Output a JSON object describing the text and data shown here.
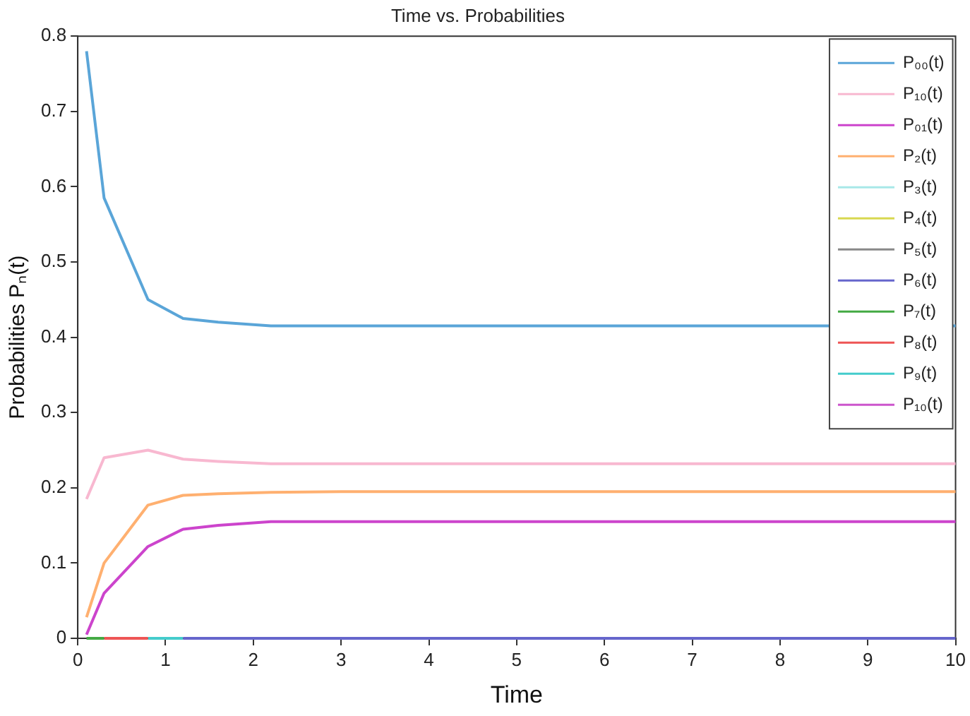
{
  "chart_data": {
    "type": "line",
    "title": "Time vs. Probabilities",
    "xlabel": "Time",
    "ylabel": "Probabilities Pₙ(t)",
    "x": [
      0.1,
      0.3,
      0.8,
      1.2,
      1.6,
      2.2,
      3,
      5,
      10
    ],
    "xlim": [
      0,
      10
    ],
    "xticks": [
      0,
      1,
      2,
      3,
      4,
      5,
      6,
      7,
      8,
      9,
      10
    ],
    "ylim": [
      0,
      0.8
    ],
    "yticks": [
      0,
      0.1,
      0.2,
      0.3,
      0.4,
      0.5,
      0.6,
      0.7,
      0.8
    ],
    "grid": false,
    "legend": "top right",
    "line_style": "solid",
    "marker": "none",
    "series": [
      {
        "name": "P₀₀(t)",
        "color": "#5aa5d8",
        "values": [
          0.78,
          0.585,
          0.45,
          0.425,
          0.42,
          0.415,
          0.415,
          0.415,
          0.415
        ]
      },
      {
        "name": "P₁₀(t)",
        "color": "#f8b8d0",
        "values": [
          0.185,
          0.24,
          0.25,
          0.238,
          0.235,
          0.232,
          0.232,
          0.232,
          0.232
        ]
      },
      {
        "name": "P₀₁(t)",
        "color": "#cc44cc",
        "values": [
          0.005,
          0.06,
          0.122,
          0.145,
          0.15,
          0.155,
          0.155,
          0.155,
          0.155
        ]
      },
      {
        "name": "P₂(t)",
        "color": "#ffb070",
        "values": [
          0.028,
          0.1,
          0.177,
          0.19,
          0.192,
          0.194,
          0.195,
          0.195,
          0.195
        ]
      },
      {
        "name": "P₃(t)",
        "color": "#a8e8e8",
        "values": [
          null,
          null,
          null,
          null,
          null,
          null,
          null,
          null,
          null
        ]
      },
      {
        "name": "P₄(t)",
        "color": "#d8d850",
        "values": [
          null,
          null,
          null,
          null,
          null,
          null,
          null,
          null,
          null
        ]
      },
      {
        "name": "P₅(t)",
        "color": "#888888",
        "values": [
          null,
          null,
          null,
          null,
          null,
          null,
          null,
          null,
          null
        ]
      },
      {
        "name": "P₆(t)",
        "color": "#6666cc",
        "values": [
          null,
          null,
          null,
          0,
          0,
          0,
          0,
          0,
          0
        ]
      },
      {
        "name": "P₇(t)",
        "color": "#44aa44",
        "values": [
          0,
          0,
          null,
          null,
          null,
          null,
          null,
          null,
          null
        ]
      },
      {
        "name": "P₈(t)",
        "color": "#ee5555",
        "values": [
          null,
          0,
          0,
          null,
          null,
          null,
          null,
          null,
          null
        ]
      },
      {
        "name": "P₉(t)",
        "color": "#44cccc",
        "values": [
          null,
          null,
          0,
          0,
          null,
          null,
          null,
          null,
          null
        ]
      },
      {
        "name": "P₁₀(t)",
        "color": "#cc55cc",
        "values": [
          null,
          null,
          null,
          null,
          null,
          null,
          null,
          null,
          null
        ]
      }
    ]
  }
}
